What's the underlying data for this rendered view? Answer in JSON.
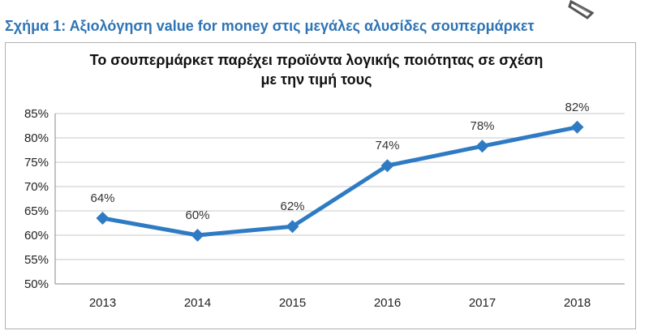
{
  "figure_caption": "Σχήμα 1: Αξιολόγηση value for money στις μεγάλες αλυσίδες σουπερμάρκετ",
  "chart_data": {
    "type": "line",
    "title_line1": "Το σουπερμάρκετ παρέχει προϊόντα λογικής ποιότητας σε σχέση",
    "title_line2": "με την τιμή τους",
    "categories": [
      "2013",
      "2014",
      "2015",
      "2016",
      "2017",
      "2018"
    ],
    "series": [
      {
        "values": [
          63.5,
          60,
          61.8,
          74.3,
          78.3,
          82.2
        ],
        "data_labels": [
          "64%",
          "60%",
          "62%",
          "74%",
          "78%",
          "82%"
        ]
      }
    ],
    "ylim": [
      50,
      85
    ],
    "yticks": [
      "50%",
      "55%",
      "60%",
      "65%",
      "70%",
      "75%",
      "80%",
      "85%"
    ],
    "grid": true,
    "xlabel": "",
    "ylabel": "",
    "colors": {
      "line": "#2e7bc4",
      "grid": "#c8c8c8",
      "caption": "#2e74b5"
    }
  }
}
